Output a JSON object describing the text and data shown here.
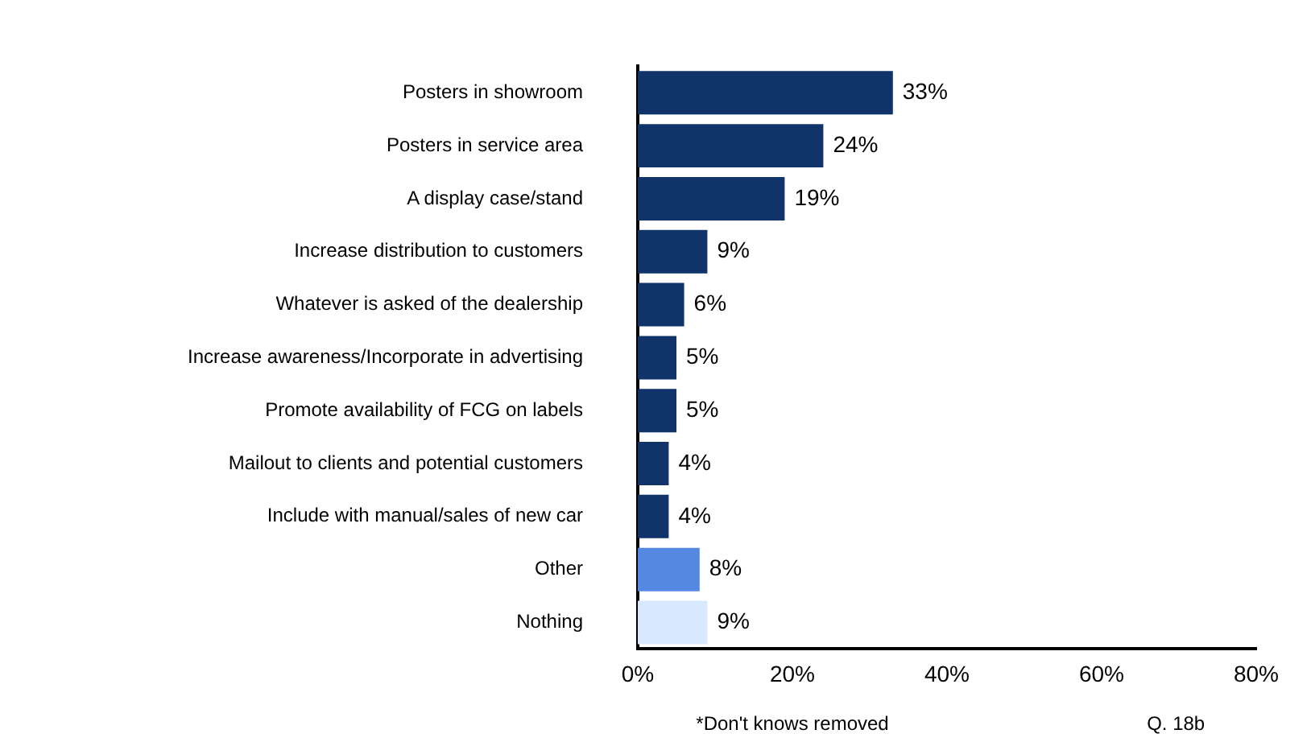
{
  "chart_data": {
    "type": "bar",
    "orientation": "horizontal",
    "categories": [
      "Posters in showroom",
      "Posters in service area",
      "A display case/stand",
      "Increase distribution to customers",
      "Whatever is asked of the dealership",
      "Increase awareness/Incorporate in advertising",
      "Promote availability of FCG on labels",
      "Mailout to clients and potential customers",
      "Include with manual/sales of new car",
      "Other",
      "Nothing"
    ],
    "values": [
      33,
      24,
      19,
      9,
      6,
      5,
      5,
      4,
      4,
      8,
      9
    ],
    "value_labels": [
      "33%",
      "24%",
      "19%",
      "9%",
      "6%",
      "5%",
      "5%",
      "4%",
      "4%",
      "8%",
      "9%"
    ],
    "colors": [
      "#10336a",
      "#10336a",
      "#10336a",
      "#10336a",
      "#10336a",
      "#10336a",
      "#10336a",
      "#10336a",
      "#10336a",
      "#5588e0",
      "#d8e8ff"
    ],
    "xlim": [
      0,
      80
    ],
    "xticks": [
      {
        "value": 0,
        "label": "0%"
      },
      {
        "value": 20,
        "label": "20%"
      },
      {
        "value": 40,
        "label": "40%"
      },
      {
        "value": 60,
        "label": "60%"
      },
      {
        "value": 80,
        "label": "80%"
      }
    ],
    "grid": false,
    "legend": false,
    "annotations": [
      "*Don't knows removed",
      "Q. 18b"
    ]
  }
}
